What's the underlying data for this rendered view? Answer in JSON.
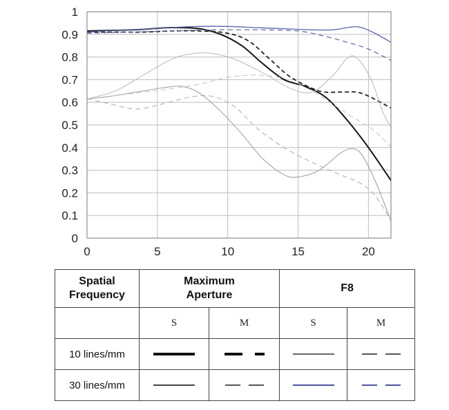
{
  "chart_data": {
    "type": "line",
    "xlim": [
      0,
      21.6
    ],
    "ylim": [
      0,
      1
    ],
    "x_ticks": [
      "0",
      "5",
      "10",
      "15",
      "20"
    ],
    "y_ticks": [
      "0",
      "0.1",
      "0.2",
      "0.3",
      "0.4",
      "0.5",
      "0.6",
      "0.7",
      "0.8",
      "0.9",
      "1"
    ],
    "grid": true,
    "series": [
      {
        "key": "max_10_s",
        "color": "#111111",
        "width": 2.0,
        "dash": "",
        "points": [
          [
            0,
            0.915
          ],
          [
            2,
            0.918
          ],
          [
            4,
            0.922
          ],
          [
            6,
            0.93
          ],
          [
            8,
            0.925
          ],
          [
            9.5,
            0.9
          ],
          [
            11,
            0.85
          ],
          [
            12.5,
            0.77
          ],
          [
            14,
            0.7
          ],
          [
            15.5,
            0.67
          ],
          [
            17,
            0.62
          ],
          [
            18.5,
            0.52
          ],
          [
            20,
            0.4
          ],
          [
            21.6,
            0.255
          ]
        ]
      },
      {
        "key": "max_10_m",
        "color": "#222222",
        "width": 1.8,
        "dash": "6,4",
        "points": [
          [
            0,
            0.91
          ],
          [
            2,
            0.91
          ],
          [
            4,
            0.91
          ],
          [
            6,
            0.915
          ],
          [
            8,
            0.915
          ],
          [
            10,
            0.905
          ],
          [
            11.5,
            0.87
          ],
          [
            13,
            0.79
          ],
          [
            14.5,
            0.71
          ],
          [
            16.5,
            0.65
          ],
          [
            18,
            0.645
          ],
          [
            19.5,
            0.64
          ],
          [
            21.6,
            0.575
          ]
        ]
      },
      {
        "key": "max_30_s",
        "color": "#9a9a9a",
        "width": 1.0,
        "dash": "",
        "points": [
          [
            0,
            0.615
          ],
          [
            1.5,
            0.625
          ],
          [
            3.5,
            0.645
          ],
          [
            5.5,
            0.665
          ],
          [
            6.8,
            0.67
          ],
          [
            8,
            0.64
          ],
          [
            9.5,
            0.56
          ],
          [
            11,
            0.46
          ],
          [
            12.5,
            0.35
          ],
          [
            14,
            0.28
          ],
          [
            15,
            0.27
          ],
          [
            16.5,
            0.3
          ],
          [
            18,
            0.375
          ],
          [
            18.8,
            0.395
          ],
          [
            19.5,
            0.37
          ],
          [
            20.5,
            0.25
          ],
          [
            21.6,
            0.075
          ]
        ]
      },
      {
        "key": "max_30_m",
        "color": "#a8a8a8",
        "width": 1.0,
        "dash": "7,5",
        "points": [
          [
            0,
            0.615
          ],
          [
            1.5,
            0.595
          ],
          [
            3.5,
            0.57
          ],
          [
            5.5,
            0.595
          ],
          [
            7.5,
            0.625
          ],
          [
            9,
            0.625
          ],
          [
            10.5,
            0.58
          ],
          [
            12,
            0.49
          ],
          [
            13.5,
            0.42
          ],
          [
            15,
            0.365
          ],
          [
            16.5,
            0.32
          ],
          [
            18,
            0.28
          ],
          [
            19.5,
            0.24
          ],
          [
            20.5,
            0.185
          ],
          [
            21.6,
            0.08
          ]
        ]
      },
      {
        "key": "f8_10_s",
        "color": "#b8b8b8",
        "width": 1.0,
        "dash": "",
        "points": [
          [
            0,
            0.615
          ],
          [
            2,
            0.65
          ],
          [
            4,
            0.72
          ],
          [
            6,
            0.79
          ],
          [
            7.5,
            0.815
          ],
          [
            9,
            0.815
          ],
          [
            10.5,
            0.79
          ],
          [
            12.5,
            0.73
          ],
          [
            14.5,
            0.66
          ],
          [
            16,
            0.645
          ],
          [
            17.5,
            0.72
          ],
          [
            18.5,
            0.795
          ],
          [
            19.2,
            0.795
          ],
          [
            20.2,
            0.7
          ],
          [
            21,
            0.56
          ],
          [
            21.6,
            0.49
          ]
        ]
      },
      {
        "key": "f8_10_m",
        "color": "#c0c0c0",
        "width": 1.0,
        "dash": "7,5",
        "points": [
          [
            0,
            0.615
          ],
          [
            2,
            0.63
          ],
          [
            4,
            0.645
          ],
          [
            6,
            0.66
          ],
          [
            8,
            0.68
          ],
          [
            10,
            0.71
          ],
          [
            12,
            0.72
          ],
          [
            14,
            0.705
          ],
          [
            16,
            0.65
          ],
          [
            17.5,
            0.59
          ],
          [
            19,
            0.53
          ],
          [
            20.3,
            0.48
          ],
          [
            21.6,
            0.405
          ]
        ]
      },
      {
        "key": "f8_30_s",
        "color": "#5a62a8",
        "width": 1.3,
        "dash": "",
        "points": [
          [
            0,
            0.91
          ],
          [
            2,
            0.918
          ],
          [
            4,
            0.922
          ],
          [
            6,
            0.93
          ],
          [
            8,
            0.935
          ],
          [
            10,
            0.935
          ],
          [
            12,
            0.93
          ],
          [
            14,
            0.925
          ],
          [
            16,
            0.92
          ],
          [
            17.5,
            0.92
          ],
          [
            18.5,
            0.93
          ],
          [
            19.3,
            0.933
          ],
          [
            20.3,
            0.91
          ],
          [
            21.6,
            0.865
          ]
        ]
      },
      {
        "key": "f8_30_m",
        "color": "#5a62a8",
        "width": 1.2,
        "dash": "7,5",
        "points": [
          [
            0,
            0.905
          ],
          [
            3,
            0.91
          ],
          [
            6,
            0.915
          ],
          [
            9,
            0.92
          ],
          [
            12,
            0.92
          ],
          [
            15,
            0.915
          ],
          [
            17,
            0.89
          ],
          [
            18.5,
            0.865
          ],
          [
            20,
            0.835
          ],
          [
            21.6,
            0.785
          ]
        ]
      }
    ]
  },
  "legend": {
    "header_col": "Spatial\nFrequency",
    "groups": [
      "Maximum\nAperture",
      "F8"
    ],
    "subheaders": [
      "S",
      "M",
      "S",
      "M"
    ],
    "rows": [
      "10 lines/mm",
      "30 lines/mm"
    ],
    "samples": {
      "row10": [
        {
          "color": "#111111",
          "thickness": 4,
          "dash": false
        },
        {
          "color": "#111111",
          "thickness": 4,
          "dash": true
        },
        {
          "color": "#666666",
          "thickness": 1.5,
          "dash": false
        },
        {
          "color": "#555555",
          "thickness": 1.5,
          "dash": true
        }
      ],
      "row30": [
        {
          "color": "#444444",
          "thickness": 1.5,
          "dash": false
        },
        {
          "color": "#555555",
          "thickness": 1.5,
          "dash": true
        },
        {
          "color": "#4a52a0",
          "thickness": 1.5,
          "dash": false
        },
        {
          "color": "#4a52a0",
          "thickness": 1.5,
          "dash": true
        }
      ]
    }
  }
}
